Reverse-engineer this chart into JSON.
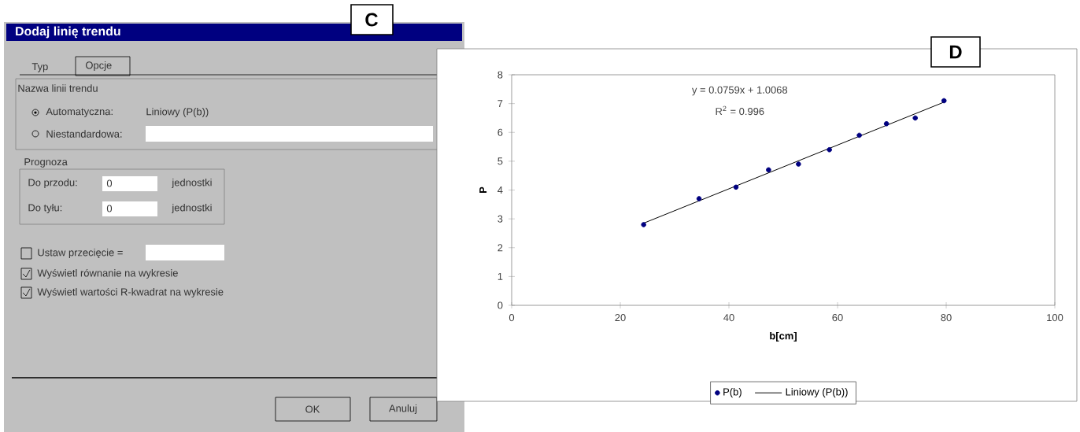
{
  "chart_data": [
    {
      "type": "other",
      "title": "Dodaj linię trendu",
      "annotations": [
        "C",
        "Typ",
        "Opcje",
        "Nazwa linii trendu",
        "Automatyczna:",
        "Liniowy (P(b))",
        "Niestandardowa:",
        "Prognoza",
        "Do przodu:",
        "0",
        "jednostki",
        "Do tyłu:",
        "0",
        "jednostki",
        "Ustaw przecięcie =",
        "Wyświetl równanie na wykresie",
        "Wyświetl wartości R-kwadrat na wykresie",
        "OK",
        "Anuluj"
      ]
    },
    {
      "type": "scatter",
      "xlabel": "b[cm]",
      "ylabel": "P",
      "xlim": [
        0,
        100
      ],
      "ylim": [
        0,
        8
      ],
      "xticks": [
        0,
        20,
        40,
        60,
        80,
        100
      ],
      "yticks": [
        0,
        1,
        2,
        3,
        4,
        5,
        6,
        7,
        8
      ],
      "legend": "bottom",
      "annotations": [
        "D",
        "y = 0.0759x + 1.0068",
        "R$^{2}$ = 0.996"
      ],
      "series": [
        {
          "name": "P(b)",
          "type": "scatter",
          "marker": "circle",
          "color": "#000080",
          "x": [
            24.3,
            34.5,
            41.3,
            47.3,
            52.8,
            58.5,
            64,
            69,
            74.3,
            79.6
          ],
          "values": [
            2.8,
            3.7,
            4.1,
            4.7,
            4.9,
            5.4,
            5.9,
            6.3,
            6.5,
            7.1
          ]
        },
        {
          "name": "Liniowy (P(b))",
          "type": "line",
          "marker": "none",
          "line_style": "solid",
          "color": "#000000",
          "x": [
            24.3,
            79.6
          ],
          "values": [
            2.85,
            7.05
          ]
        }
      ]
    }
  ]
}
